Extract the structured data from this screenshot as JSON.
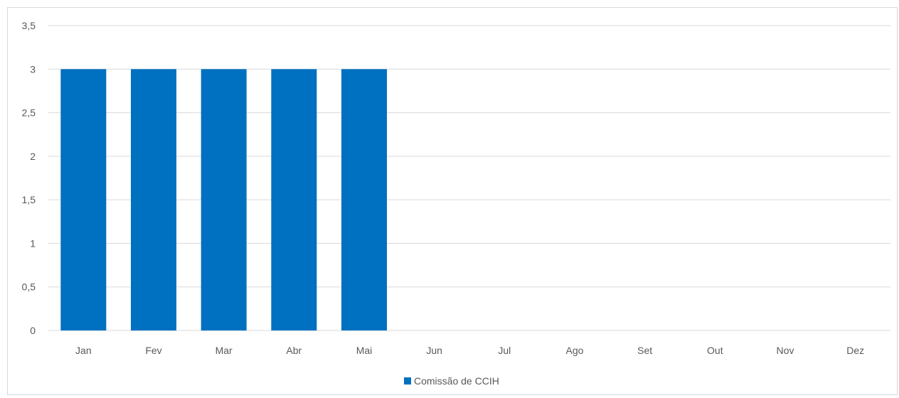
{
  "chart_data": {
    "type": "bar",
    "categories": [
      "Jan",
      "Fev",
      "Mar",
      "Abr",
      "Mai",
      "Jun",
      "Jul",
      "Ago",
      "Set",
      "Out",
      "Nov",
      "Dez"
    ],
    "series": [
      {
        "name": "Comissão de CCIH",
        "values": [
          3,
          3,
          3,
          3,
          3,
          0,
          0,
          0,
          0,
          0,
          0,
          0
        ],
        "color": "#0070c0"
      }
    ],
    "ylim": [
      0,
      3.5
    ],
    "yticks": [
      "0",
      "0,5",
      "1",
      "1,5",
      "2",
      "2,5",
      "3",
      "3,5"
    ],
    "ytick_values": [
      0,
      0.5,
      1,
      1.5,
      2,
      2.5,
      3,
      3.5
    ],
    "title": "",
    "xlabel": "",
    "ylabel": "",
    "grid": true,
    "gridline_color": "#d9d9d9",
    "legend_position": "bottom"
  }
}
